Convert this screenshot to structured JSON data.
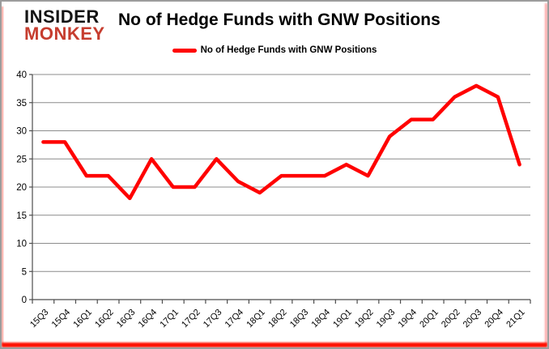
{
  "logo": {
    "line1": "INSIDER",
    "line2": "MONKEY",
    "color1": "#141414",
    "color2": "#c63d2f"
  },
  "header": {
    "title": "No of Hedge Funds with GNW Positions"
  },
  "legend": {
    "label": "No of Hedge Funds with GNW Positions",
    "marker_color": "#ff0000"
  },
  "chart_data": {
    "type": "line",
    "title": "No of Hedge Funds with GNW Positions",
    "series_name": "No of Hedge Funds with GNW Positions",
    "categories": [
      "15Q3",
      "15Q4",
      "16Q1",
      "16Q2",
      "16Q3",
      "16Q4",
      "17Q1",
      "17Q2",
      "17Q3",
      "17Q4",
      "18Q1",
      "18Q2",
      "18Q3",
      "18Q4",
      "19Q1",
      "19Q2",
      "19Q3",
      "19Q4",
      "20Q1",
      "20Q2",
      "20Q3",
      "20Q4",
      "21Q1"
    ],
    "values": [
      28,
      28,
      22,
      22,
      18,
      25,
      20,
      20,
      25,
      21,
      19,
      22,
      22,
      22,
      24,
      22,
      29,
      32,
      32,
      36,
      38,
      36,
      24
    ],
    "xlabel": "",
    "ylabel": "",
    "ylim": [
      0,
      40
    ],
    "ytick_step": 5,
    "grid": true,
    "legend_position": "top",
    "line_color": "#ff0000",
    "grid_color": "#8c8c8c",
    "axis_color": "#4d4d4d",
    "tick_label_color": "#000000"
  }
}
